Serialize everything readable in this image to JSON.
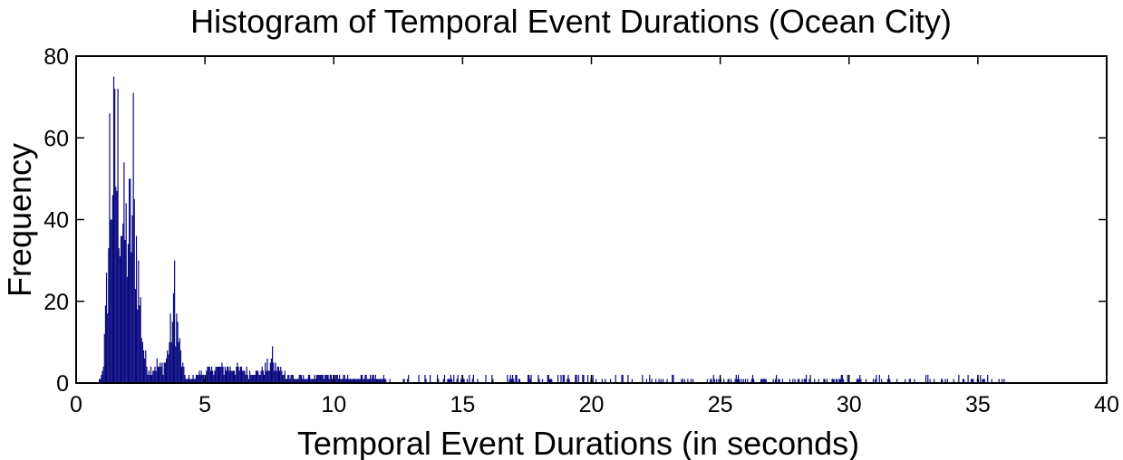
{
  "chart_data": {
    "type": "bar",
    "title": "Histogram of Temporal Event Durations (Ocean City)",
    "xlabel": "Temporal Event Durations (in seconds)",
    "ylabel": "Frequency",
    "xlim": [
      0,
      40
    ],
    "ylim": [
      0,
      80
    ],
    "xticks": [
      "0",
      "5",
      "10",
      "15",
      "20",
      "25",
      "30",
      "35",
      "40"
    ],
    "yticks": [
      "0",
      "20",
      "40",
      "60",
      "80"
    ],
    "grid": false,
    "bar_color": "#0a0a80",
    "bin_width": 0.04,
    "peaks": [
      {
        "x": 1.3,
        "y": 66
      },
      {
        "x": 1.6,
        "y": 72
      },
      {
        "x": 2.2,
        "y": 71
      },
      {
        "x": 3.8,
        "y": 30
      },
      {
        "x": 7.6,
        "y": 9
      }
    ]
  }
}
